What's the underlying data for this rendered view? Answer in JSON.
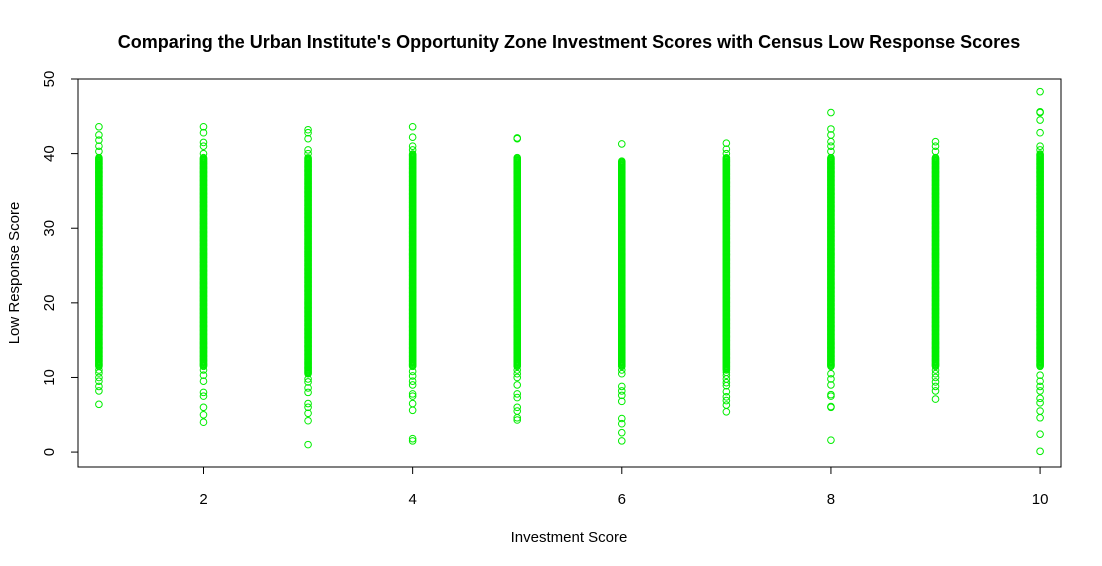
{
  "chart_data": {
    "type": "scatter",
    "title": "Comparing the Urban Institute's Opportunity Zone Investment Scores with Census Low Response Scores",
    "xlabel": "Investment Score",
    "ylabel": "Low Response Score",
    "xlim": [
      0.8,
      10.2
    ],
    "ylim": [
      -2,
      50
    ],
    "x_ticks": [
      2,
      4,
      6,
      8,
      10
    ],
    "x_tick_labels": [
      "2",
      "4",
      "6",
      "8",
      "10"
    ],
    "y_ticks": [
      0,
      10,
      20,
      30,
      40,
      50
    ],
    "y_tick_labels": [
      "0",
      "10",
      "20",
      "30",
      "40",
      "50"
    ],
    "grid": false,
    "legend": "none",
    "marker": "open-circle",
    "color": "#00ee00",
    "series": [
      {
        "x": 1,
        "dense_range": [
          11.5,
          39.5
        ],
        "outliers": [
          6.4,
          8.2,
          8.8,
          9.5,
          10.0,
          10.6,
          11.0,
          40.3,
          41.0,
          41.8,
          42.5,
          43.6
        ]
      },
      {
        "x": 2,
        "dense_range": [
          11.5,
          39.5
        ],
        "outliers": [
          4.0,
          5.0,
          6.0,
          7.5,
          8.0,
          9.5,
          10.3,
          11.0,
          40.0,
          41.0,
          41.5,
          42.8,
          43.6
        ]
      },
      {
        "x": 3,
        "dense_range": [
          10.5,
          39.5
        ],
        "outliers": [
          1.0,
          4.2,
          5.2,
          6.0,
          6.5,
          8.0,
          8.6,
          9.4,
          9.8,
          40.0,
          40.5,
          42.0,
          42.8,
          43.2
        ]
      },
      {
        "x": 4,
        "dense_range": [
          11.5,
          40.0
        ],
        "outliers": [
          1.5,
          1.8,
          5.6,
          6.5,
          7.5,
          7.8,
          9.0,
          9.5,
          10.2,
          10.8,
          40.5,
          41.0,
          42.2,
          43.6
        ]
      },
      {
        "x": 5,
        "dense_range": [
          11.5,
          39.5
        ],
        "outliers": [
          4.3,
          4.6,
          5.5,
          6.0,
          7.3,
          7.8,
          9.0,
          10.0,
          10.5,
          11.0,
          42.0,
          42.1
        ]
      },
      {
        "x": 6,
        "dense_range": [
          11.5,
          39.0
        ],
        "outliers": [
          1.5,
          2.6,
          3.8,
          4.5,
          6.8,
          7.6,
          8.2,
          8.8,
          10.5,
          11.0,
          41.3
        ]
      },
      {
        "x": 7,
        "dense_range": [
          11.0,
          39.5
        ],
        "outliers": [
          5.4,
          6.3,
          6.9,
          7.4,
          8.1,
          8.9,
          9.3,
          9.8,
          10.3,
          10.7,
          40.0,
          40.6,
          41.4
        ]
      },
      {
        "x": 8,
        "dense_range": [
          11.5,
          39.5
        ],
        "outliers": [
          1.6,
          6.0,
          6.1,
          7.5,
          7.7,
          9.0,
          9.8,
          10.5,
          40.3,
          41.0,
          41.6,
          42.5,
          43.3,
          45.5
        ]
      },
      {
        "x": 9,
        "dense_range": [
          11.5,
          39.5
        ],
        "outliers": [
          7.1,
          8.2,
          8.8,
          9.4,
          10.0,
          10.5,
          11.0,
          40.3,
          41.0,
          41.6
        ]
      },
      {
        "x": 10,
        "dense_range": [
          11.5,
          40.0
        ],
        "outliers": [
          0.1,
          2.4,
          4.6,
          5.5,
          6.6,
          7.2,
          8.2,
          8.8,
          9.5,
          10.3,
          40.5,
          41.0,
          42.8,
          44.5,
          45.5,
          45.6,
          48.3
        ]
      }
    ]
  }
}
